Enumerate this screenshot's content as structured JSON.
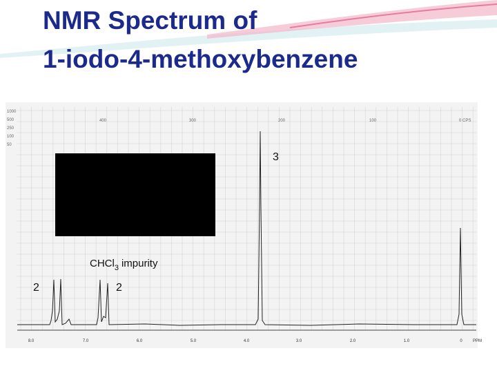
{
  "header": {
    "title_lines": [
      "NMR Spectrum of",
      "1-iodo-4-methoxybenzene"
    ]
  },
  "spectrum": {
    "scale_left": [
      "1000",
      "500",
      "250",
      "100",
      "50"
    ],
    "scale_top": [
      "400",
      "300",
      "200",
      "100",
      "0 CPS"
    ],
    "ppm_axis": [
      "8.0",
      "7.0",
      "6.0",
      "5.0",
      "4.0",
      "3.0",
      "2.0",
      "1.0",
      "0",
      "PPM"
    ],
    "annotations": {
      "methoxy": "3",
      "impurity": [
        "CHCl",
        "3",
        "impurity"
      ],
      "aromatic_left": "2",
      "aromatic_right": "2"
    }
  }
}
